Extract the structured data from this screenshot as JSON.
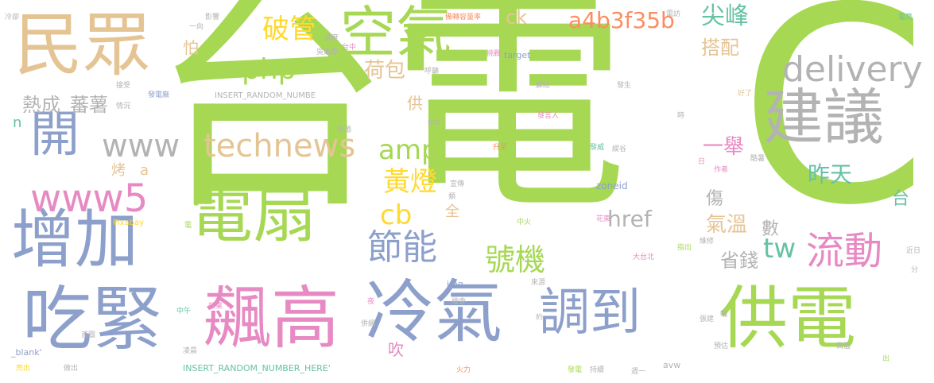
{
  "palette": {
    "green": "#a6d854",
    "gray": "#b3b3b3",
    "tan": "#e5c494",
    "blue": "#8da0cb",
    "pink": "#e78ac3",
    "orange": "#fc8d62",
    "yellow": "#ffd92f",
    "teal": "#66c2a5"
  },
  "words": [
    {
      "text": "台電",
      "color": "green"
    },
    {
      "text": "C",
      "color": "green"
    },
    {
      "text": "民眾",
      "color": "tan"
    },
    {
      "text": "空氣",
      "color": "green"
    },
    {
      "text": "建議",
      "color": "gray"
    },
    {
      "text": "開",
      "color": "blue"
    },
    {
      "text": "電扇",
      "color": "green"
    },
    {
      "text": "增加",
      "color": "blue"
    },
    {
      "text": "吃緊",
      "color": "blue"
    },
    {
      "text": "飆高",
      "color": "pink"
    },
    {
      "text": "冷氣",
      "color": "blue"
    },
    {
      "text": "調到",
      "color": "blue"
    },
    {
      "text": "供電",
      "color": "green"
    },
    {
      "text": "www5",
      "color": "pink"
    },
    {
      "text": "www",
      "color": "gray"
    },
    {
      "text": "technews",
      "color": "tan"
    },
    {
      "text": "php",
      "color": "green"
    },
    {
      "text": "破管",
      "color": "yellow"
    },
    {
      "text": "amp",
      "color": "green"
    },
    {
      "text": "節能",
      "color": "blue"
    },
    {
      "text": "黃燈",
      "color": "yellow"
    },
    {
      "text": "cb",
      "color": "yellow"
    },
    {
      "text": "號機",
      "color": "green"
    },
    {
      "text": "流動",
      "color": "pink"
    },
    {
      "text": "tw",
      "color": "teal"
    },
    {
      "text": "delivery",
      "color": "gray"
    },
    {
      "text": "a4b3f35b",
      "color": "orange"
    },
    {
      "text": "尖峰",
      "color": "teal"
    },
    {
      "text": "搭配",
      "color": "tan"
    },
    {
      "text": "一舉",
      "color": "pink"
    },
    {
      "text": "昨天",
      "color": "teal"
    },
    {
      "text": "href",
      "color": "gray"
    },
    {
      "text": "氣溫",
      "color": "tan"
    },
    {
      "text": "省錢",
      "color": "gray"
    },
    {
      "text": "荷包",
      "color": "tan"
    },
    {
      "text": "熱成",
      "color": "gray"
    },
    {
      "text": "蕃薯",
      "color": "gray"
    },
    {
      "text": "ck",
      "color": "tan"
    },
    {
      "text": "台",
      "color": "teal"
    },
    {
      "text": "數",
      "color": "gray"
    },
    {
      "text": "傷",
      "color": "gray"
    },
    {
      "text": "供",
      "color": "tan"
    },
    {
      "text": "怕",
      "color": "tan"
    },
    {
      "text": "烤",
      "color": "tan"
    },
    {
      "text": "a",
      "color": "tan"
    },
    {
      "text": "全",
      "color": "tan"
    },
    {
      "text": "吹",
      "color": "pink"
    },
    {
      "text": "n",
      "color": "teal"
    },
    {
      "text": "INSERT_RANDOM_NUMBE",
      "color": "gray"
    },
    {
      "text": "INSERT_RANDOM_NUMBER_HERE'",
      "color": "teal"
    },
    {
      "text": "zoneid",
      "color": "blue"
    },
    {
      "text": "target",
      "color": "blue"
    },
    {
      "text": "Pixabay",
      "color": "yellow"
    },
    {
      "text": "_blank'",
      "color": "blue"
    },
    {
      "text": "img",
      "color": "blue"
    },
    {
      "text": "src",
      "color": "gray"
    },
    {
      "text": "avw",
      "color": "gray"
    },
    {
      "text": "冷卻",
      "color": "gray"
    },
    {
      "text": "影響",
      "color": "gray"
    },
    {
      "text": "一向",
      "color": "gray"
    },
    {
      "text": "進度",
      "color": "gray"
    },
    {
      "text": "吳進忠",
      "color": "gray"
    },
    {
      "text": "台中",
      "color": "pink"
    },
    {
      "text": "呼籲",
      "color": "gray"
    },
    {
      "text": "備轉容量率",
      "color": "orange"
    },
    {
      "text": "挑戰",
      "color": "pink"
    },
    {
      "text": "解除",
      "color": "gray"
    },
    {
      "text": "發電廠",
      "color": "blue"
    },
    {
      "text": "接受",
      "color": "gray"
    },
    {
      "text": "情況",
      "color": "gray"
    },
    {
      "text": "發生",
      "color": "gray"
    },
    {
      "text": "發言人",
      "color": "pink"
    },
    {
      "text": "電訪",
      "color": "gray"
    },
    {
      "text": "電亮",
      "color": "teal"
    },
    {
      "text": "好了",
      "color": "tan"
    },
    {
      "text": "時",
      "color": "gray"
    },
    {
      "text": "熱源",
      "color": "gray"
    },
    {
      "text": "升至",
      "color": "orange"
    },
    {
      "text": "發威",
      "color": "teal"
    },
    {
      "text": "縱谷",
      "color": "gray"
    },
    {
      "text": "酷暑",
      "color": "gray"
    },
    {
      "text": "作者",
      "color": "pink"
    },
    {
      "text": "日",
      "color": "pink"
    },
    {
      "text": "宣傳",
      "color": "gray"
    },
    {
      "text": "類",
      "color": "gray"
    },
    {
      "text": "電",
      "color": "green"
    },
    {
      "text": "中火",
      "color": "green"
    },
    {
      "text": "花東",
      "color": "pink"
    },
    {
      "text": "指出",
      "color": "green"
    },
    {
      "text": "維修",
      "color": "gray"
    },
    {
      "text": "大台北",
      "color": "pink"
    },
    {
      "text": "近日",
      "color": "gray"
    },
    {
      "text": "分",
      "color": "gray"
    },
    {
      "text": "來源",
      "color": "gray"
    },
    {
      "text": "夜",
      "color": "pink"
    },
    {
      "text": "效果",
      "color": "pink"
    },
    {
      "text": "中午",
      "color": "teal"
    },
    {
      "text": "繪會",
      "color": "gray"
    },
    {
      "text": "約",
      "color": "gray"
    },
    {
      "text": "輔",
      "color": "gray"
    },
    {
      "text": "張建",
      "color": "gray"
    },
    {
      "text": "併網",
      "color": "gray"
    },
    {
      "text": "首圖",
      "color": "gray"
    },
    {
      "text": "凌晨",
      "color": "gray"
    },
    {
      "text": "高溫",
      "color": "gray"
    },
    {
      "text": "預估",
      "color": "gray"
    },
    {
      "text": "亮出",
      "color": "yellow"
    },
    {
      "text": "做出",
      "color": "gray"
    },
    {
      "text": "火力",
      "color": "orange"
    },
    {
      "text": "發電",
      "color": "green"
    },
    {
      "text": "持續",
      "color": "gray"
    },
    {
      "text": "週一",
      "color": "gray"
    },
    {
      "text": "出",
      "color": "green"
    }
  ]
}
